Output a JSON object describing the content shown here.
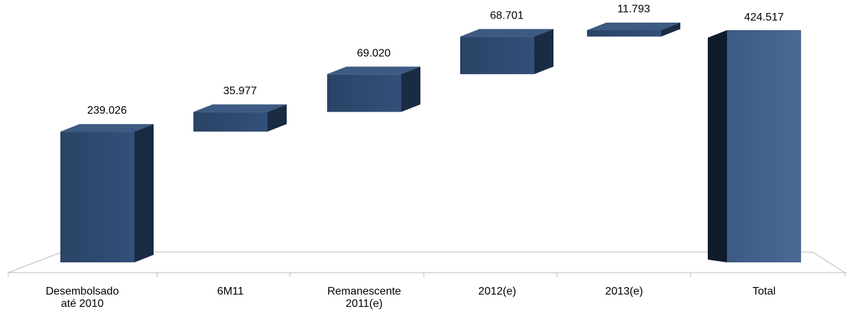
{
  "chart_data": {
    "type": "bar",
    "subtype": "waterfall-3d",
    "categories": [
      [
        "Desembolsado",
        "até 2010"
      ],
      [
        "6M11"
      ],
      [
        "Remanescente",
        "2011(e)"
      ],
      [
        "2012(e)"
      ],
      [
        "2013(e)"
      ],
      [
        "Total"
      ]
    ],
    "values": [
      239026,
      35977,
      69020,
      68701,
      11793,
      424517
    ],
    "value_labels": [
      "239.026",
      "35.977",
      "69.020",
      "68.701",
      "11.793",
      "424.517"
    ],
    "bar_kinds": [
      "base",
      "step",
      "step",
      "step",
      "step",
      "total"
    ],
    "ylim": [
      0,
      424517
    ],
    "grid": false,
    "legend": "none",
    "colors": {
      "front": "#2f4a6e",
      "side": "#1a2c44",
      "top": "#3d5a82",
      "total_side": "#0f1b2a",
      "floor_line": "#b8b8b8"
    }
  }
}
